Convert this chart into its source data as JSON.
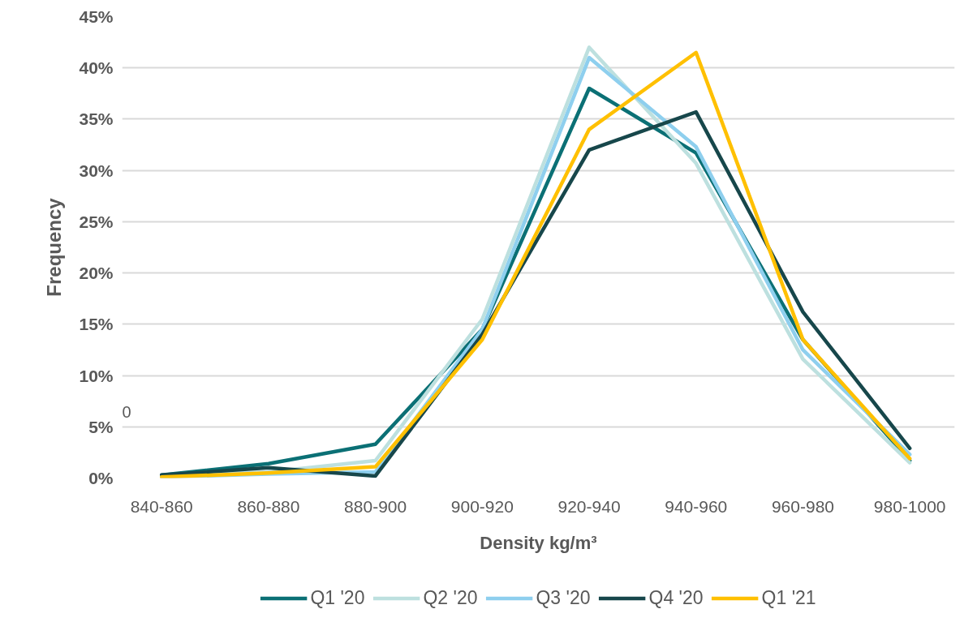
{
  "chart_data": {
    "type": "line",
    "xlabel": "Density kg/m³",
    "ylabel": "Frequency",
    "categories": [
      "840-860",
      "860-880",
      "880-900",
      "900-920",
      "920-940",
      "940-960",
      "960-980",
      "980-1000"
    ],
    "series": [
      {
        "name": "Q1 '20",
        "color": "#0b7075",
        "values": [
          0.3,
          1.4,
          3.3,
          14.5,
          38,
          31.7,
          13.5,
          1.7
        ]
      },
      {
        "name": "Q2 '20",
        "color": "#bde0df",
        "values": [
          0.2,
          0.6,
          1.7,
          15.5,
          42,
          30.7,
          11.6,
          1.5
        ]
      },
      {
        "name": "Q3 '20",
        "color": "#8ecfee",
        "values": [
          0.1,
          0.4,
          0.6,
          14.5,
          41,
          32.3,
          12.5,
          2.3
        ]
      },
      {
        "name": "Q4 '20",
        "color": "#17474b",
        "values": [
          0.3,
          1.0,
          0.2,
          14,
          32,
          35.7,
          16.2,
          2.9
        ]
      },
      {
        "name": "Q1 '21",
        "color": "#ffc000",
        "values": [
          0.1,
          0.5,
          1.1,
          13.5,
          34,
          41.5,
          13.5,
          1.9
        ]
      }
    ],
    "ylim": [
      0,
      45
    ],
    "yticks": [
      {
        "value": 0,
        "label": "0%"
      },
      {
        "value": 5,
        "label": "5%"
      },
      {
        "value": 10,
        "label": "10%"
      },
      {
        "value": 15,
        "label": "15%"
      },
      {
        "value": 20,
        "label": "20%"
      },
      {
        "value": 25,
        "label": "25%"
      },
      {
        "value": 30,
        "label": "30%"
      },
      {
        "value": 35,
        "label": "35%"
      },
      {
        "value": 40,
        "label": "40%"
      },
      {
        "value": 45,
        "label": "45%"
      }
    ],
    "grid": "y",
    "legend": "bottom",
    "line_style": "solid",
    "marker": "none",
    "annotations": [
      "0"
    ]
  }
}
